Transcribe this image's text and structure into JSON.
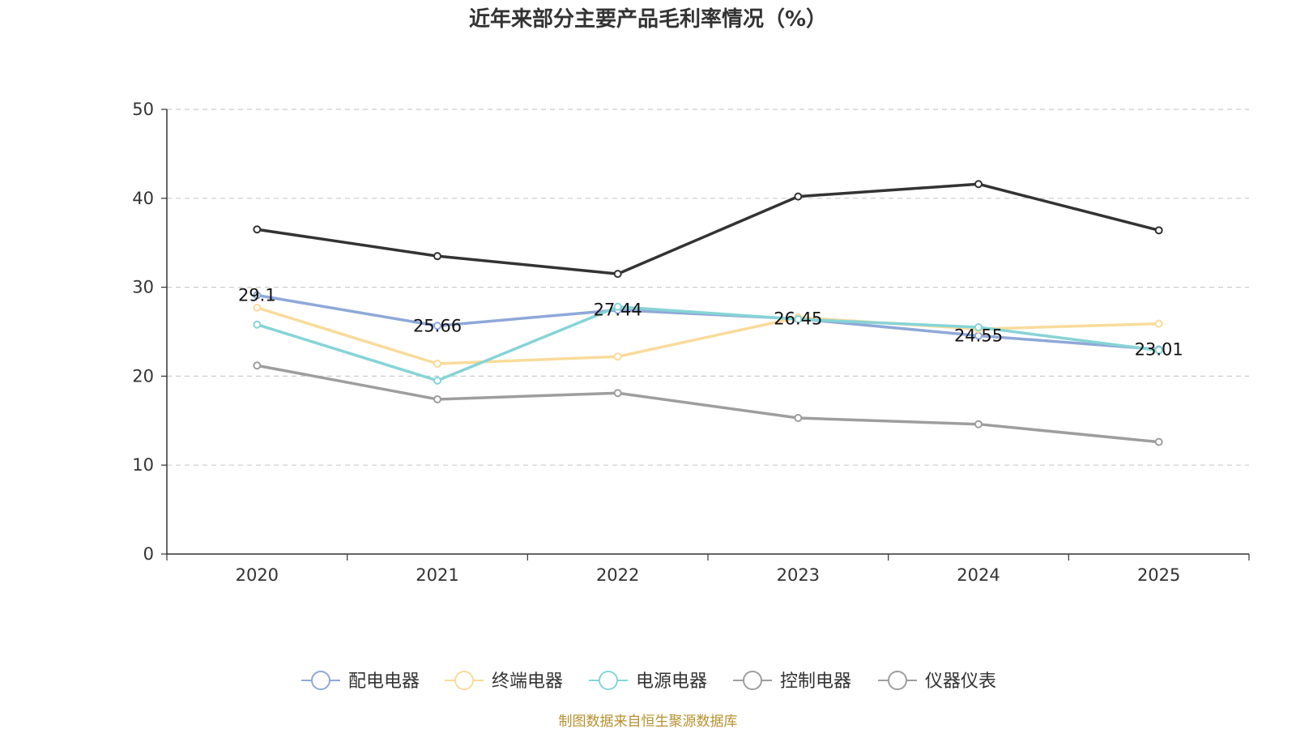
{
  "chart_data": {
    "type": "line",
    "title": "近年来部分主要产品毛利率情况（%）",
    "categories": [
      "2020",
      "2021",
      "2022",
      "2023",
      "2024",
      "2025"
    ],
    "ylim": [
      0,
      50
    ],
    "yticks": [
      0,
      10,
      20,
      30,
      40,
      50
    ],
    "grid": true,
    "legend_position": "bottom",
    "series": [
      {
        "name": "配电电器",
        "color": "#8FA8D8",
        "values": [
          29.1,
          25.66,
          27.44,
          26.45,
          24.55,
          23.01
        ],
        "labeled": true
      },
      {
        "name": "终端电器",
        "color": "#F9DB9B",
        "values": [
          27.7,
          21.4,
          22.2,
          26.6,
          25.3,
          25.9
        ],
        "labeled": false
      },
      {
        "name": "电源电器",
        "color": "#86D4D6",
        "values": [
          25.8,
          19.5,
          27.8,
          26.4,
          25.5,
          22.9
        ],
        "labeled": false
      },
      {
        "name": "控制电器",
        "color": "#333333",
        "values": [
          36.5,
          33.5,
          31.5,
          40.2,
          41.6,
          36.4
        ],
        "labeled": false
      },
      {
        "name": "仪器仪表",
        "color": "#9E9E9E",
        "values": [
          21.2,
          17.4,
          18.1,
          15.3,
          14.6,
          12.6
        ],
        "labeled": false
      }
    ],
    "data_labels": [
      "29.1",
      "25.66",
      "27.44",
      "26.45",
      "24.55",
      "23.01"
    ],
    "legend_colors": [
      "#8FA8D8",
      "#F9DB9B",
      "#86D4D6",
      "#9E9E9E",
      "#9E9E9E"
    ]
  },
  "source_text": "制图数据来自恒生聚源数据库",
  "source_color": "#B8912F"
}
